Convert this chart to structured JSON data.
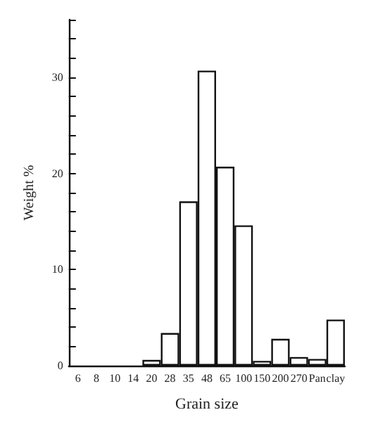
{
  "chart_data": {
    "type": "bar",
    "xlabel": "Grain size",
    "ylabel": "Weight %",
    "categories": [
      "6",
      "8",
      "10",
      "14",
      "20",
      "28",
      "35",
      "48",
      "65",
      "100",
      "150",
      "200",
      "270",
      "Pan",
      "clay"
    ],
    "values": [
      0,
      0,
      0,
      0,
      0.6,
      3.4,
      17.1,
      30.7,
      20.7,
      14.6,
      0.5,
      2.8,
      0.9,
      0.7,
      4.8
    ],
    "color": "#ffffff",
    "ylim": [
      0,
      36
    ],
    "yticks": [
      0,
      {
        "value": 2,
        "label": null
      },
      {
        "value": 4,
        "label": null
      },
      {
        "value": 6,
        "label": null
      },
      {
        "value": 8,
        "label": null
      },
      10,
      {
        "value": 12,
        "label": null
      },
      {
        "value": 14,
        "label": null
      },
      {
        "value": 16,
        "label": null
      },
      {
        "value": 18,
        "label": null
      },
      20,
      {
        "value": 22,
        "label": null
      },
      {
        "value": 24,
        "label": null
      },
      {
        "value": 26,
        "label": null
      },
      {
        "value": 28,
        "label": null
      },
      30,
      {
        "value": 32,
        "label": null
      },
      {
        "value": 34,
        "label": null
      },
      {
        "value": 36,
        "label": null
      }
    ],
    "grid": false
  }
}
